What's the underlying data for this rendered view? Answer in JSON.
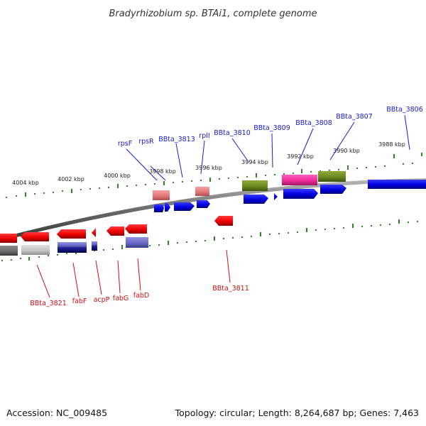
{
  "title": "Bradyrhizobium sp. BTAi1, complete genome",
  "accession": "Accession: NC_009485",
  "summary": "Topology: circular; Length: 8,264,687 bp; Genes: 7,463",
  "kbp_labels": [
    "4004 kbp",
    "4002 kbp",
    "4000 kbp",
    "3998 kbp",
    "3996 kbp",
    "3994 kbp",
    "3992 kbp",
    "3990 kbp",
    "3988 kbp"
  ],
  "top_genes": [
    "rpsF",
    "rpsR",
    "BBta_3813",
    "rplI",
    "BBta_3810",
    "BBta_3809",
    "BBta_3808",
    "BBta_3807",
    "BBta_3806"
  ],
  "bottom_genes": [
    "BBta_3821",
    "fabF",
    "acpP",
    "fabG",
    "fabD",
    "BBta_3811"
  ],
  "colors": {
    "forward_gene": "#0000ee",
    "reverse_gene": "#ee0000",
    "backbone": "#666666",
    "ticks": "#2f8a22",
    "top_label": "#1a1acc",
    "bottom_label": "#cc1111"
  }
}
